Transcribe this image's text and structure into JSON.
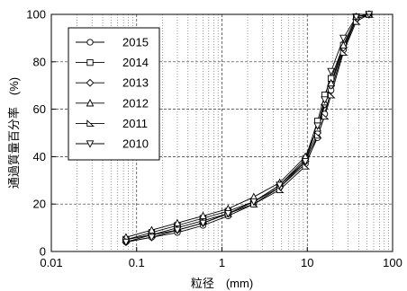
{
  "chart_data": {
    "type": "line",
    "xscale": "log",
    "xlim": [
      0.01,
      100
    ],
    "ylim": [
      0,
      100
    ],
    "xticks": [
      0.01,
      0.1,
      1,
      10,
      100
    ],
    "xtick_labels": [
      "0.01",
      "0.1",
      "1",
      "10",
      "100"
    ],
    "yticks": [
      0,
      20,
      40,
      60,
      80,
      100
    ],
    "ytick_labels": [
      "0",
      "20",
      "40",
      "60",
      "80",
      "100"
    ],
    "xlabel": "粒径　(mm)",
    "ylabel": "通過質量百分率　(%)",
    "grid": true,
    "legend": "top-left",
    "series": [
      {
        "name": "2015",
        "marker": "circle",
        "x": [
          0.075,
          0.15,
          0.3,
          0.6,
          1.18,
          2.36,
          4.75,
          9.5,
          13.2,
          16,
          19,
          26.5,
          37.5,
          53
        ],
        "y": [
          4,
          6,
          8,
          11,
          15,
          20,
          27,
          37,
          48,
          58,
          68,
          85,
          98,
          100
        ]
      },
      {
        "name": "2014",
        "marker": "square",
        "x": [
          0.075,
          0.15,
          0.3,
          0.6,
          1.18,
          2.36,
          4.75,
          9.5,
          13.2,
          16,
          19,
          26.5,
          37.5,
          53
        ],
        "y": [
          5,
          8,
          11,
          14,
          17,
          21,
          28,
          39,
          55,
          66,
          73,
          87,
          99,
          100
        ]
      },
      {
        "name": "2013",
        "marker": "diamond",
        "x": [
          0.075,
          0.15,
          0.3,
          0.6,
          1.18,
          2.36,
          4.75,
          9.5,
          13.2,
          16,
          19,
          26.5,
          37.5,
          53
        ],
        "y": [
          4,
          7,
          9,
          12,
          16,
          21,
          27,
          38,
          50,
          62,
          70,
          86,
          98,
          100
        ]
      },
      {
        "name": "2012",
        "marker": "triangle-up",
        "x": [
          0.075,
          0.15,
          0.3,
          0.6,
          1.18,
          2.36,
          4.75,
          9.5,
          13.2,
          16,
          19,
          26.5,
          37.5,
          53
        ],
        "y": [
          6,
          9,
          12,
          15,
          18,
          23,
          29,
          40,
          52,
          63,
          71,
          87,
          99,
          100
        ]
      },
      {
        "name": "2011",
        "marker": "triangle-left",
        "x": [
          0.075,
          0.15,
          0.3,
          0.6,
          1.18,
          2.36,
          4.75,
          9.5,
          13.2,
          16,
          19,
          26.5,
          37.5,
          53
        ],
        "y": [
          5,
          7,
          10,
          13,
          16,
          20,
          26,
          36,
          49,
          57,
          66,
          84,
          97,
          100
        ]
      },
      {
        "name": "2010",
        "marker": "triangle-down",
        "x": [
          0.075,
          0.15,
          0.3,
          0.6,
          1.18,
          2.36,
          4.75,
          9.5,
          13.2,
          16,
          19,
          26.5,
          37.5,
          53
        ],
        "y": [
          4,
          6,
          9,
          12,
          16,
          21,
          28,
          38,
          53,
          64,
          76,
          90,
          99,
          100
        ]
      }
    ]
  }
}
